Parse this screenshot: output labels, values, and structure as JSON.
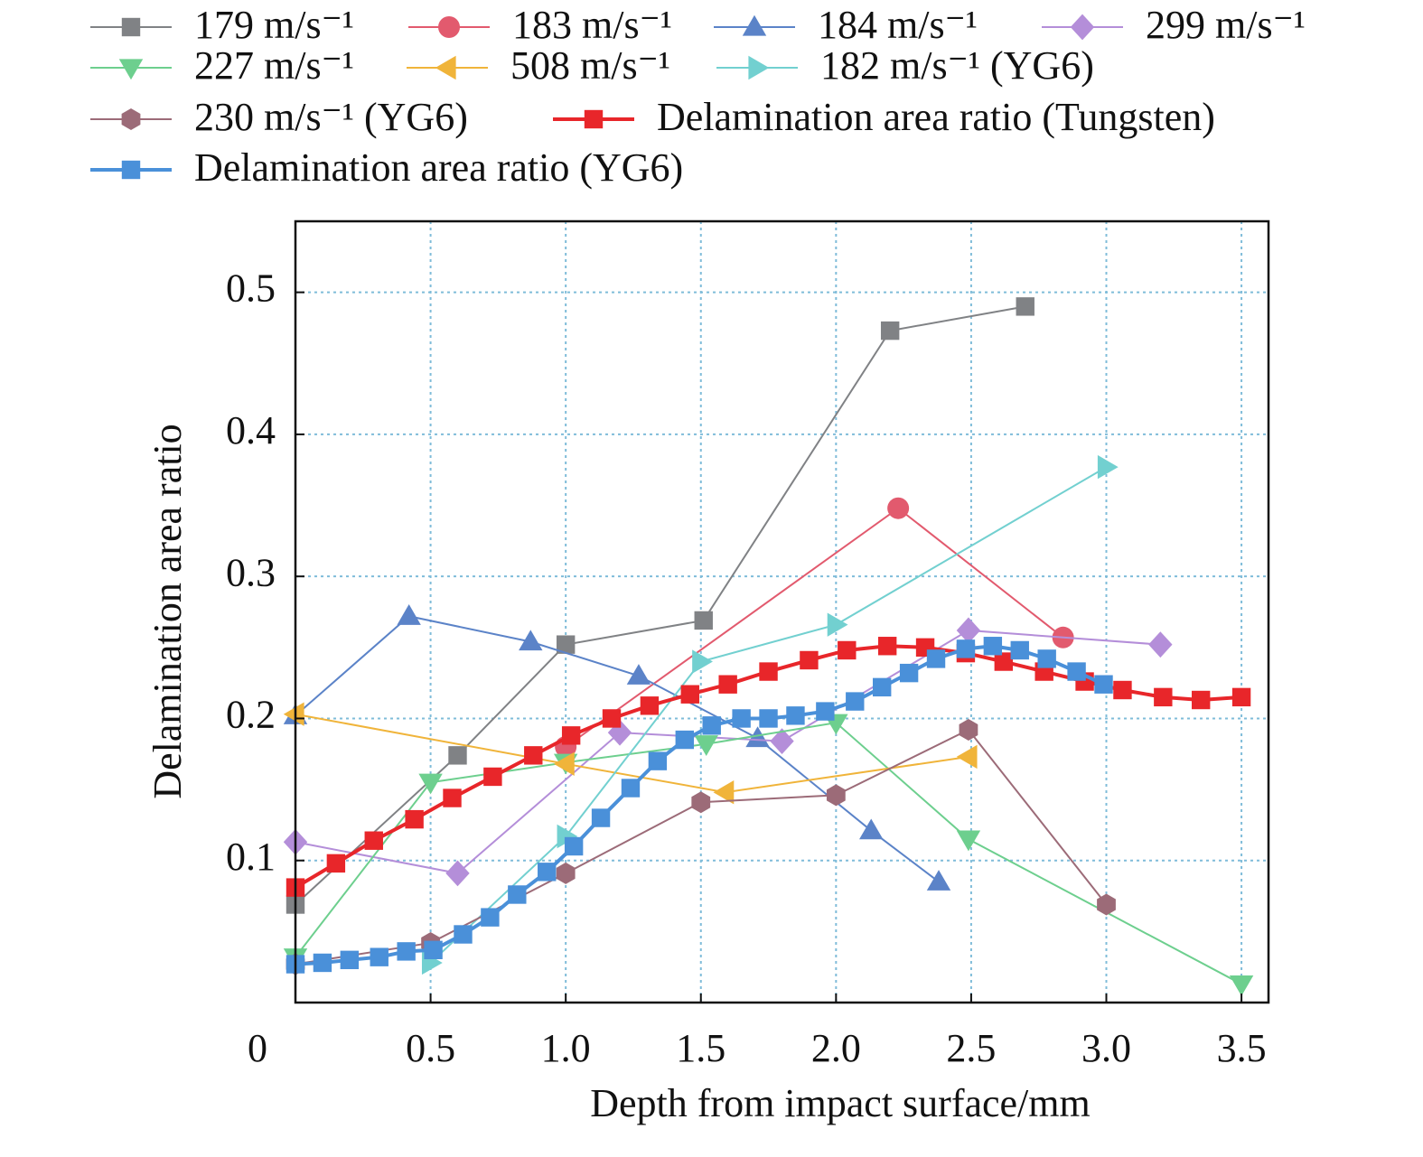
{
  "chart_data": {
    "type": "line",
    "x_label": "Depth from impact surface/mm",
    "y_label": "Delamination area ratio",
    "xlim": [
      0,
      3.6
    ],
    "ylim": [
      0,
      0.55
    ],
    "xticks": [
      0,
      0.5,
      {
        "value": 1,
        "label": "1.0"
      },
      1.5,
      {
        "value": 2,
        "label": "2.0"
      },
      2.5,
      {
        "value": 3,
        "label": "3.0"
      },
      3.5
    ],
    "yticks": [
      0.1,
      0.2,
      0.3,
      0.4,
      0.5
    ],
    "grid": true,
    "series": [
      {
        "name": "179 m/s⁻¹",
        "color": "#808285",
        "marker": "square",
        "width": 2,
        "x": [
          0,
          0.6,
          1.0,
          1.51,
          2.2,
          2.7
        ],
        "values": [
          0.069,
          0.174,
          0.252,
          0.269,
          0.473,
          0.49
        ]
      },
      {
        "name": "183 m/s⁻¹",
        "color": "#e25a6e",
        "marker": "circle",
        "width": 2,
        "x": [
          1.0,
          2.23,
          2.84
        ],
        "values": [
          0.18,
          0.348,
          0.257
        ]
      },
      {
        "name": "184 m/s⁻¹",
        "color": "#5b83c8",
        "marker": "triangle-up",
        "width": 2,
        "x": [
          0,
          0.42,
          0.87,
          1.27,
          1.71,
          2.13,
          2.38
        ],
        "values": [
          0.202,
          0.272,
          0.254,
          0.23,
          0.186,
          0.121,
          0.085
        ]
      },
      {
        "name": "299 m/s⁻¹",
        "color": "#b48ed9",
        "marker": "diamond",
        "width": 2,
        "x": [
          0,
          0.6,
          1.2,
          1.8,
          2.49,
          3.2
        ],
        "values": [
          0.113,
          0.091,
          0.19,
          0.184,
          0.262,
          0.252
        ]
      },
      {
        "name": "227 m/s⁻¹",
        "color": "#6dcf8e",
        "marker": "triangle-down",
        "width": 2,
        "x": [
          0,
          0.5,
          1.0,
          1.52,
          2.0,
          2.49,
          3.5
        ],
        "values": [
          0.032,
          0.155,
          0.169,
          0.182,
          0.197,
          0.115,
          0.013
        ]
      },
      {
        "name": "508 m/s⁻¹",
        "color": "#f0b43a",
        "marker": "triangle-left",
        "width": 2,
        "x": [
          0,
          1.0,
          1.59,
          2.49
        ],
        "values": [
          0.203,
          0.168,
          0.148,
          0.173
        ]
      },
      {
        "name": "182 m/s⁻¹ (YG6)",
        "color": "#72d0d0",
        "marker": "triangle-right",
        "width": 2,
        "x": [
          0.5,
          1.0,
          1.5,
          2.0,
          3.0
        ],
        "values": [
          0.028,
          0.117,
          0.24,
          0.266,
          0.377
        ]
      },
      {
        "name": "230 m/s⁻¹ (YG6)",
        "color": "#9c6b78",
        "marker": "hexagon",
        "width": 2,
        "x": [
          0,
          0.5,
          1.0,
          1.5,
          2.0,
          2.49,
          3.0
        ],
        "values": [
          0.027,
          0.042,
          0.091,
          0.141,
          0.146,
          0.192,
          0.069
        ]
      },
      {
        "name": "Delamination area ratio (Tungsten)",
        "color": "#e8262a",
        "marker": "square",
        "width": 4,
        "x": [
          0,
          0.15,
          0.29,
          0.44,
          0.58,
          0.73,
          0.88,
          1.02,
          1.17,
          1.31,
          1.46,
          1.6,
          1.75,
          1.9,
          2.04,
          2.19,
          2.33,
          2.48,
          2.62,
          2.77,
          2.92,
          3.06,
          3.21,
          3.35,
          3.5
        ],
        "values": [
          0.081,
          0.098,
          0.114,
          0.129,
          0.144,
          0.159,
          0.174,
          0.188,
          0.2,
          0.209,
          0.217,
          0.224,
          0.233,
          0.241,
          0.248,
          0.251,
          0.25,
          0.246,
          0.24,
          0.233,
          0.226,
          0.22,
          0.215,
          0.213,
          0.215
        ]
      },
      {
        "name": "Delamination area ratio (YG6)",
        "color": "#4a90d9",
        "marker": "square",
        "width": 4,
        "x": [
          0,
          0.1,
          0.2,
          0.31,
          0.41,
          0.51,
          0.62,
          0.72,
          0.82,
          0.93,
          1.03,
          1.13,
          1.24,
          1.34,
          1.44,
          1.54,
          1.65,
          1.75,
          1.85,
          1.96,
          2.07,
          2.17,
          2.27,
          2.37,
          2.48,
          2.58,
          2.68,
          2.78,
          2.89,
          2.99
        ],
        "values": [
          0.027,
          0.028,
          0.03,
          0.032,
          0.036,
          0.037,
          0.048,
          0.06,
          0.076,
          0.092,
          0.11,
          0.13,
          0.151,
          0.17,
          0.185,
          0.195,
          0.2,
          0.2,
          0.202,
          0.205,
          0.212,
          0.222,
          0.232,
          0.242,
          0.249,
          0.251,
          0.248,
          0.242,
          0.233,
          0.224
        ]
      }
    ]
  }
}
